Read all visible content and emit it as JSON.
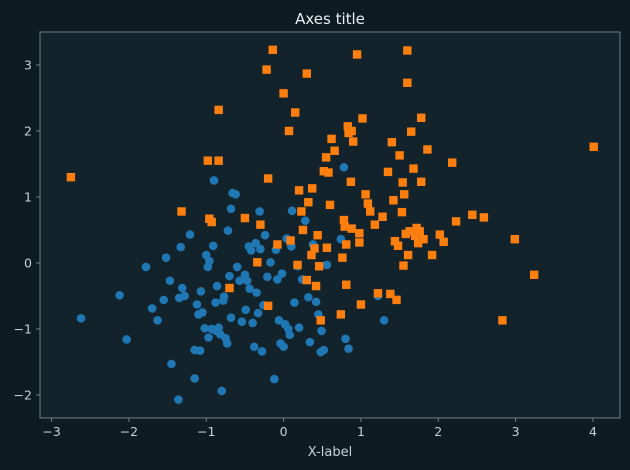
{
  "colors": {
    "figure_background": "#0d1b22",
    "axes_background": "#13232b",
    "spine": "#6f7f86",
    "text": "#e8eef1",
    "muted_text": "#c6d0d5"
  },
  "chart_data": {
    "type": "scatter",
    "title": "Axes title",
    "xlabel": "X-label",
    "ylabel": "",
    "xlim": [
      -3.15,
      4.35
    ],
    "ylim": [
      -2.35,
      3.5
    ],
    "xticks": [
      -3,
      -2,
      -1,
      0,
      1,
      2,
      3,
      4
    ],
    "yticks": [
      -2,
      -1,
      0,
      1,
      2,
      3
    ],
    "grid": false,
    "series": [
      {
        "marker": "circle",
        "color": "#1f77b4",
        "points": [
          [
            -2.62,
            -0.84
          ],
          [
            -2.12,
            -0.49
          ],
          [
            -2.03,
            -1.16
          ],
          [
            -1.78,
            -0.06
          ],
          [
            -1.7,
            -0.69
          ],
          [
            -1.63,
            -0.87
          ],
          [
            -1.52,
            0.08
          ],
          [
            -1.55,
            -0.56
          ],
          [
            -1.47,
            -0.27
          ],
          [
            -1.45,
            -1.53
          ],
          [
            -1.36,
            -2.07
          ],
          [
            -1.35,
            -0.53
          ],
          [
            -1.33,
            0.24
          ],
          [
            -1.31,
            -0.38
          ],
          [
            -1.28,
            -0.5
          ],
          [
            -1.21,
            0.43
          ],
          [
            -1.15,
            -1.32
          ],
          [
            -1.15,
            -1.75
          ],
          [
            -1.12,
            -0.63
          ],
          [
            -1.1,
            -0.78
          ],
          [
            -1.08,
            -1.33
          ],
          [
            -1.07,
            -0.43
          ],
          [
            -1.05,
            -0.75
          ],
          [
            -1.02,
            -0.99
          ],
          [
            -1.0,
            0.12
          ],
          [
            -0.98,
            -0.06
          ],
          [
            -0.97,
            -1.13
          ],
          [
            -0.96,
            0.03
          ],
          [
            -0.93,
            -1.0
          ],
          [
            -0.91,
            0.26
          ],
          [
            -0.9,
            1.25
          ],
          [
            -0.88,
            -0.6
          ],
          [
            -0.87,
            -1.03
          ],
          [
            -0.86,
            -0.35
          ],
          [
            -0.84,
            -0.98
          ],
          [
            -0.82,
            -1.08
          ],
          [
            -0.8,
            -1.94
          ],
          [
            -0.78,
            -0.57
          ],
          [
            -0.77,
            -0.51
          ],
          [
            -0.75,
            -1.14
          ],
          [
            -0.73,
            -1.22
          ],
          [
            -0.72,
            0.49
          ],
          [
            -0.7,
            -0.2
          ],
          [
            -0.68,
            -0.83
          ],
          [
            -0.68,
            0.82
          ],
          [
            -0.66,
            1.06
          ],
          [
            -0.62,
            1.04
          ],
          [
            -0.6,
            -0.06
          ],
          [
            -0.57,
            -0.27
          ],
          [
            -0.54,
            -0.89
          ],
          [
            -0.5,
            -0.18
          ],
          [
            -0.49,
            -0.71
          ],
          [
            -0.47,
            -0.27
          ],
          [
            -0.45,
            0.25
          ],
          [
            -0.44,
            -0.39
          ],
          [
            -0.42,
            0.19
          ],
          [
            -0.4,
            -0.91
          ],
          [
            -0.38,
            -1.27
          ],
          [
            -0.36,
            0.3
          ],
          [
            -0.35,
            -0.45
          ],
          [
            -0.33,
            -0.76
          ],
          [
            -0.31,
            0.78
          ],
          [
            -0.3,
            0.21
          ],
          [
            -0.28,
            -1.34
          ],
          [
            -0.26,
            -0.64
          ],
          [
            -0.24,
            0.42
          ],
          [
            -0.21,
            -0.21
          ],
          [
            -0.17,
            0.01
          ],
          [
            -0.12,
            -1.76
          ],
          [
            -0.1,
            0.2
          ],
          [
            -0.08,
            -0.25
          ],
          [
            -0.06,
            -0.87
          ],
          [
            -0.04,
            -1.22
          ],
          [
            -0.02,
            -0.16
          ],
          [
            0.0,
            -1.27
          ],
          [
            0.02,
            -0.93
          ],
          [
            0.04,
            0.37
          ],
          [
            0.06,
            -1.0
          ],
          [
            0.08,
            -1.09
          ],
          [
            0.1,
            0.25
          ],
          [
            0.11,
            0.79
          ],
          [
            0.14,
            -0.6
          ],
          [
            0.18,
            -0.05
          ],
          [
            0.2,
            -0.98
          ],
          [
            0.24,
            -0.25
          ],
          [
            0.28,
            0.64
          ],
          [
            0.32,
            -0.52
          ],
          [
            0.34,
            -1.2
          ],
          [
            0.38,
            0.28
          ],
          [
            0.42,
            -0.59
          ],
          [
            0.45,
            -0.78
          ],
          [
            0.48,
            -1.35
          ],
          [
            0.49,
            -1.03
          ],
          [
            0.52,
            -1.32
          ],
          [
            0.56,
            -0.03
          ],
          [
            0.74,
            0.36
          ],
          [
            0.78,
            1.45
          ],
          [
            0.8,
            -1.15
          ],
          [
            0.84,
            -1.3
          ],
          [
            1.22,
            -0.5
          ],
          [
            1.3,
            -0.87
          ]
        ]
      },
      {
        "marker": "square",
        "color": "#ff7f0e",
        "points": [
          [
            -2.75,
            1.3
          ],
          [
            -1.32,
            0.78
          ],
          [
            -0.98,
            1.55
          ],
          [
            -0.96,
            0.67
          ],
          [
            -0.93,
            0.62
          ],
          [
            -0.84,
            2.32
          ],
          [
            -0.84,
            1.55
          ],
          [
            -0.7,
            -0.38
          ],
          [
            -0.5,
            0.68
          ],
          [
            -0.34,
            0.01
          ],
          [
            -0.3,
            0.58
          ],
          [
            -0.22,
            2.93
          ],
          [
            -0.2,
            -0.65
          ],
          [
            -0.2,
            1.28
          ],
          [
            -0.14,
            3.23
          ],
          [
            -0.08,
            0.28
          ],
          [
            0.0,
            2.57
          ],
          [
            0.07,
            2.0
          ],
          [
            0.09,
            0.34
          ],
          [
            0.15,
            2.28
          ],
          [
            0.18,
            -0.03
          ],
          [
            0.2,
            1.1
          ],
          [
            0.23,
            0.78
          ],
          [
            0.25,
            0.5
          ],
          [
            0.3,
            2.87
          ],
          [
            0.3,
            -0.26
          ],
          [
            0.32,
            0.92
          ],
          [
            0.36,
            0.12
          ],
          [
            0.37,
            1.13
          ],
          [
            0.4,
            0.22
          ],
          [
            0.42,
            -0.35
          ],
          [
            0.44,
            0.42
          ],
          [
            0.46,
            -0.05
          ],
          [
            0.48,
            -0.87
          ],
          [
            0.52,
            1.39
          ],
          [
            0.55,
            1.6
          ],
          [
            0.56,
            0.23
          ],
          [
            0.58,
            1.37
          ],
          [
            0.6,
            0.88
          ],
          [
            0.62,
            1.88
          ],
          [
            0.66,
            1.7
          ],
          [
            0.74,
            -0.78
          ],
          [
            0.76,
            0.08
          ],
          [
            0.78,
            0.65
          ],
          [
            0.79,
            0.55
          ],
          [
            0.81,
            0.28
          ],
          [
            0.81,
            -0.33
          ],
          [
            0.83,
            2.07
          ],
          [
            0.84,
            1.97
          ],
          [
            0.87,
            1.23
          ],
          [
            0.88,
            2.0
          ],
          [
            0.88,
            0.52
          ],
          [
            0.9,
            1.84
          ],
          [
            0.95,
            3.16
          ],
          [
            0.98,
            0.31
          ],
          [
            0.98,
            0.45
          ],
          [
            1.0,
            -0.63
          ],
          [
            1.02,
            2.19
          ],
          [
            1.06,
            1.04
          ],
          [
            1.09,
            0.9
          ],
          [
            1.12,
            0.78
          ],
          [
            1.18,
            0.58
          ],
          [
            1.22,
            -0.46
          ],
          [
            1.28,
            0.7
          ],
          [
            1.35,
            1.38
          ],
          [
            1.38,
            -0.47
          ],
          [
            1.4,
            1.83
          ],
          [
            1.42,
            0.95
          ],
          [
            1.44,
            0.33
          ],
          [
            1.46,
            -0.56
          ],
          [
            1.48,
            0.26
          ],
          [
            1.5,
            1.63
          ],
          [
            1.53,
            0.77
          ],
          [
            1.54,
            1.22
          ],
          [
            1.55,
            -0.04
          ],
          [
            1.56,
            1.04
          ],
          [
            1.58,
            0.44
          ],
          [
            1.6,
            3.22
          ],
          [
            1.6,
            2.73
          ],
          [
            1.61,
            0.12
          ],
          [
            1.63,
            0.48
          ],
          [
            1.65,
            1.99
          ],
          [
            1.68,
            1.43
          ],
          [
            1.7,
            0.41
          ],
          [
            1.72,
            0.53
          ],
          [
            1.74,
            0.3
          ],
          [
            1.76,
            0.48
          ],
          [
            1.78,
            2.2
          ],
          [
            1.78,
            1.23
          ],
          [
            1.81,
            0.36
          ],
          [
            1.86,
            1.72
          ],
          [
            1.92,
            0.12
          ],
          [
            2.02,
            0.43
          ],
          [
            2.07,
            0.32
          ],
          [
            2.18,
            1.52
          ],
          [
            2.23,
            0.63
          ],
          [
            2.44,
            0.73
          ],
          [
            2.59,
            0.69
          ],
          [
            2.83,
            -0.87
          ],
          [
            2.99,
            0.36
          ],
          [
            3.24,
            -0.18
          ],
          [
            4.01,
            1.76
          ]
        ]
      }
    ]
  }
}
